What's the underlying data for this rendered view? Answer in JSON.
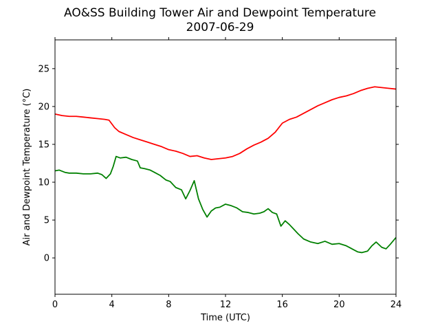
{
  "chart_data": {
    "type": "line",
    "title": "AO&SS Building Tower Air and Dewpoint Temperature",
    "subtitle": "2007-06-29",
    "xlabel": "Time (UTC)",
    "ylabel": "Air and Dewpoint Temperature (°C)",
    "xlim": [
      0,
      24
    ],
    "ylim": [
      -4.8,
      28.8
    ],
    "xticks": [
      0,
      4,
      8,
      12,
      16,
      20,
      24
    ],
    "yticks": [
      0,
      5,
      10,
      15,
      20,
      25
    ],
    "grid": false,
    "legend": "none",
    "series": [
      {
        "color": "#ff0000",
        "x": [
          0,
          0.5,
          1,
          1.5,
          2,
          2.5,
          3,
          3.5,
          3.8,
          4,
          4.2,
          4.5,
          5,
          5.5,
          6,
          6.5,
          7,
          7.5,
          8,
          8.5,
          9,
          9.5,
          10,
          10.5,
          11,
          11.5,
          12,
          12.5,
          13,
          13.5,
          14,
          14.5,
          15,
          15.5,
          16,
          16.5,
          17,
          17.5,
          18,
          18.5,
          19,
          19.5,
          20,
          20.5,
          21,
          21.5,
          22,
          22.5,
          23,
          23.5,
          24
        ],
        "values": [
          19.0,
          18.8,
          18.7,
          18.7,
          18.6,
          18.5,
          18.4,
          18.3,
          18.2,
          17.7,
          17.2,
          16.7,
          16.3,
          15.9,
          15.6,
          15.3,
          15.0,
          14.7,
          14.3,
          14.1,
          13.8,
          13.4,
          13.5,
          13.2,
          13.0,
          13.1,
          13.2,
          13.4,
          13.8,
          14.4,
          14.9,
          15.3,
          15.8,
          16.6,
          17.8,
          18.3,
          18.6,
          19.1,
          19.6,
          20.1,
          20.5,
          20.9,
          21.2,
          21.4,
          21.7,
          22.1,
          22.4,
          22.6,
          22.5,
          22.4,
          22.3
        ]
      },
      {
        "color": "#008000",
        "x": [
          0,
          0.3,
          0.7,
          1,
          1.5,
          2,
          2.5,
          3,
          3.3,
          3.6,
          3.9,
          4.1,
          4.3,
          4.6,
          5,
          5.4,
          5.8,
          6,
          6.3,
          6.7,
          7,
          7.4,
          7.8,
          8.1,
          8.5,
          8.9,
          9.2,
          9.5,
          9.8,
          10.1,
          10.4,
          10.7,
          11,
          11.3,
          11.6,
          12,
          12.4,
          12.8,
          13.2,
          13.6,
          14,
          14.4,
          14.7,
          15,
          15.3,
          15.6,
          15.9,
          16.2,
          16.5,
          16.8,
          17.1,
          17.5,
          18,
          18.5,
          19,
          19.5,
          20,
          20.5,
          21,
          21.3,
          21.6,
          22,
          22.3,
          22.6,
          23,
          23.3,
          23.6,
          24
        ],
        "values": [
          11.5,
          11.6,
          11.3,
          11.2,
          11.2,
          11.1,
          11.1,
          11.2,
          11.0,
          10.5,
          11.1,
          12.1,
          13.4,
          13.2,
          13.3,
          13.0,
          12.8,
          11.9,
          11.8,
          11.6,
          11.3,
          10.9,
          10.3,
          10.1,
          9.3,
          9.0,
          7.8,
          8.9,
          10.2,
          7.8,
          6.4,
          5.4,
          6.2,
          6.6,
          6.7,
          7.1,
          6.9,
          6.6,
          6.1,
          6.0,
          5.8,
          5.9,
          6.1,
          6.5,
          6.0,
          5.8,
          4.2,
          4.9,
          4.4,
          3.8,
          3.2,
          2.5,
          2.1,
          1.9,
          2.2,
          1.8,
          1.9,
          1.6,
          1.1,
          0.8,
          0.7,
          0.9,
          1.6,
          2.1,
          1.4,
          1.2,
          1.8,
          2.7
        ]
      }
    ]
  }
}
